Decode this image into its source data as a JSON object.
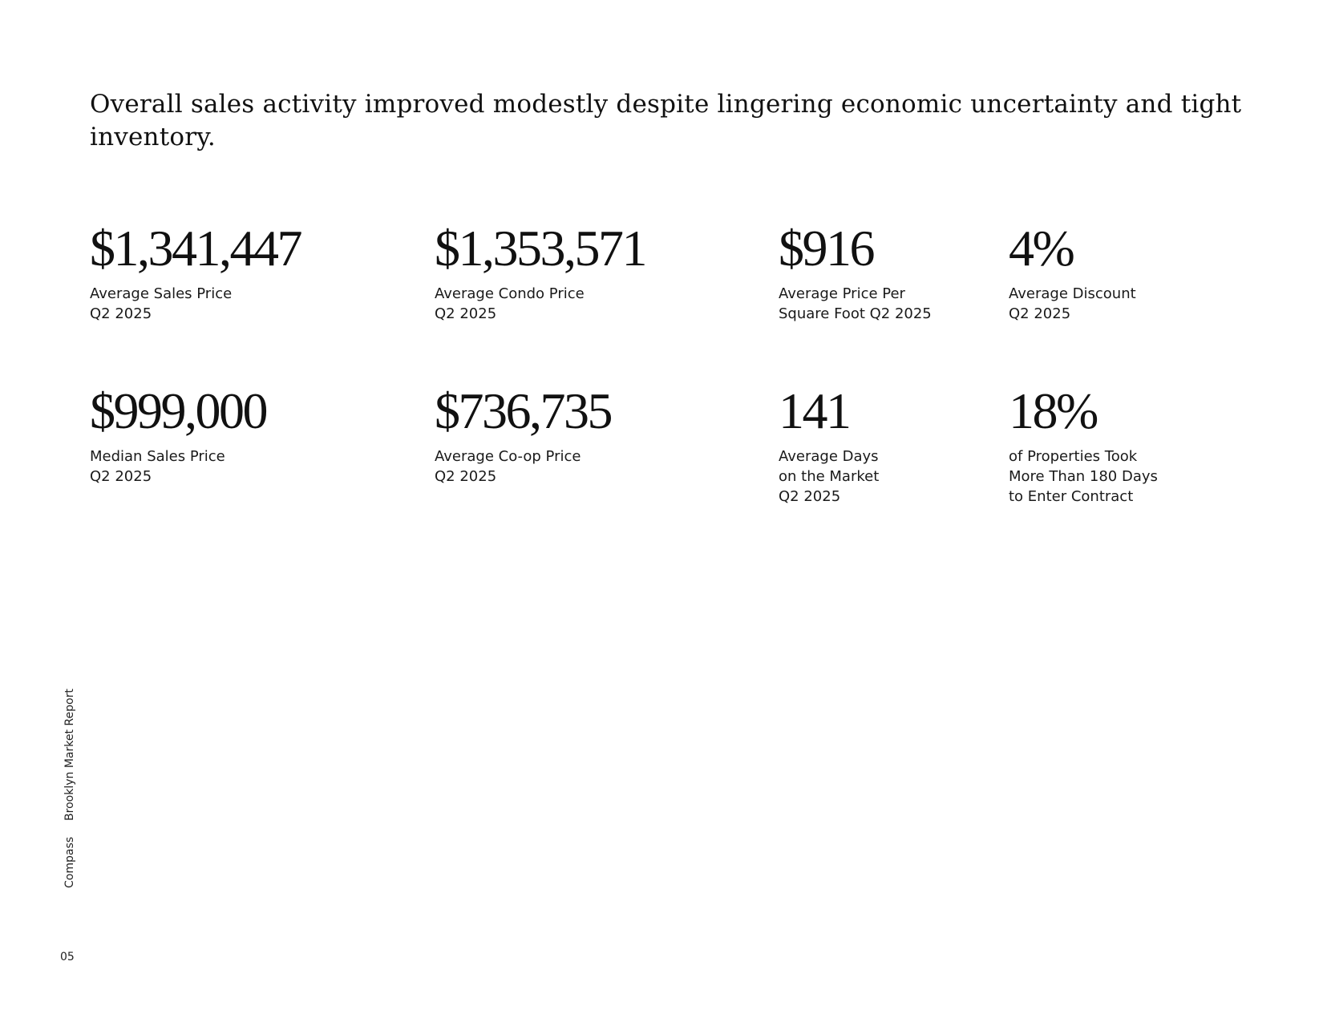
{
  "headline": "Overall sales activity improved modestly despite lingering economic uncertainty and tight inventory.",
  "stats": [
    {
      "value": "$1,341,447",
      "label": "Average Sales Price\nQ2 2025"
    },
    {
      "value": "$1,353,571",
      "label": "Average Condo Price\nQ2 2025"
    },
    {
      "value": "$916",
      "label": "Average Price Per\nSquare Foot Q2 2025"
    },
    {
      "value": "4%",
      "label": "Average Discount\nQ2 2025"
    },
    {
      "value": "$999,000",
      "label": "Median Sales Price\nQ2 2025"
    },
    {
      "value": "$736,735",
      "label": "Average Co-op Price\nQ2 2025"
    },
    {
      "value": "141",
      "label": "Average Days\non the Market\nQ2 2025"
    },
    {
      "value": "18%",
      "label": "of Properties Took\nMore Than 180 Days\nto Enter Contract"
    }
  ],
  "footer": {
    "brand": "Compass",
    "report": "Brooklyn Market Report",
    "page_number": "05"
  }
}
